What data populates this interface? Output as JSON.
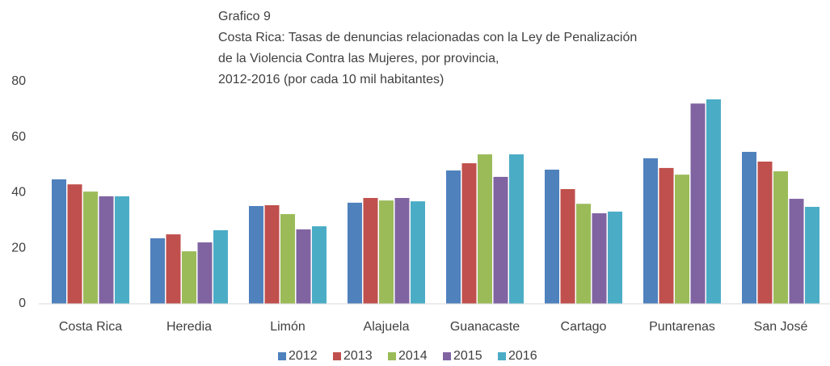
{
  "chart_data": {
    "type": "bar",
    "title": [
      "Grafico 9",
      "Costa Rica: Tasas de denuncias relacionadas con la Ley de Penalización",
      "de la Violencia Contra las Mujeres, por provincia,",
      " 2012-2016 (por cada 10 mil habitantes)"
    ],
    "categories": [
      "Costa Rica",
      "Heredia",
      "Limón",
      "Alajuela",
      "Guanacaste",
      "Cartago",
      "Puntarenas",
      "San José"
    ],
    "series": [
      {
        "name": "2012",
        "color": "#4f81bd",
        "values": [
          44.8,
          23.6,
          35.2,
          36.4,
          48,
          48.3,
          52.4,
          54.7
        ]
      },
      {
        "name": "2013",
        "color": "#c0504d",
        "values": [
          43,
          25,
          35.5,
          38.1,
          50.6,
          41.3,
          48.9,
          51.2
        ]
      },
      {
        "name": "2014",
        "color": "#9bbb59",
        "values": [
          40.4,
          18.9,
          32.3,
          37.2,
          53.8,
          36,
          46.5,
          47.7
        ]
      },
      {
        "name": "2015",
        "color": "#8064a2",
        "values": [
          38.7,
          22.1,
          26.8,
          38.1,
          45.7,
          32.6,
          72.1,
          37.8
        ]
      },
      {
        "name": "2016",
        "color": "#4bacc6",
        "values": [
          38.7,
          26.5,
          27.9,
          36.9,
          53.8,
          33.2,
          73.6,
          34.9
        ]
      }
    ],
    "ylim": [
      0,
      80
    ],
    "yticks": [
      0,
      20,
      40,
      60,
      80
    ],
    "grid": false,
    "legend": "bottom"
  }
}
